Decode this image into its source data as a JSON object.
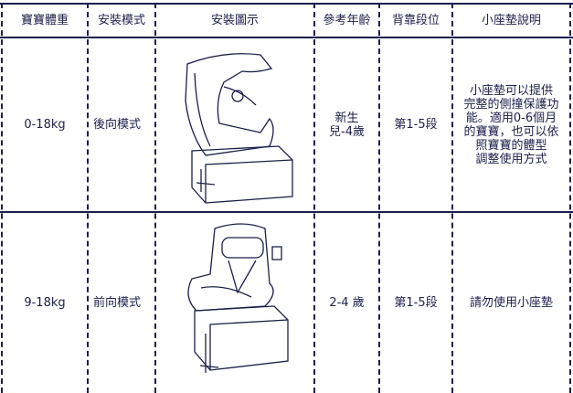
{
  "header": {
    "weight": "寶寶體重",
    "mode": "安裝模式",
    "figure": "安裝圖示",
    "age": "參考年齡",
    "position": "背靠段位",
    "note": "小座墊說明"
  },
  "table": {
    "rows": [
      {
        "weight": "0-18kg",
        "mode": "後向模式",
        "age": [
          "新生",
          "兒-4歲"
        ],
        "position": "第1-5段",
        "note": [
          "小座墊可以提供",
          "完整的側撞保護功",
          "能。適用0-6個月",
          "的寶寶，也可以依",
          "照寶寶的體型",
          "調整使用方式"
        ]
      },
      {
        "weight": "9-18kg",
        "mode": "前向模式",
        "age": [
          "2-4 歲"
        ],
        "position": "第1-5段",
        "note": [
          "請勿使用小座墊"
        ]
      }
    ]
  }
}
